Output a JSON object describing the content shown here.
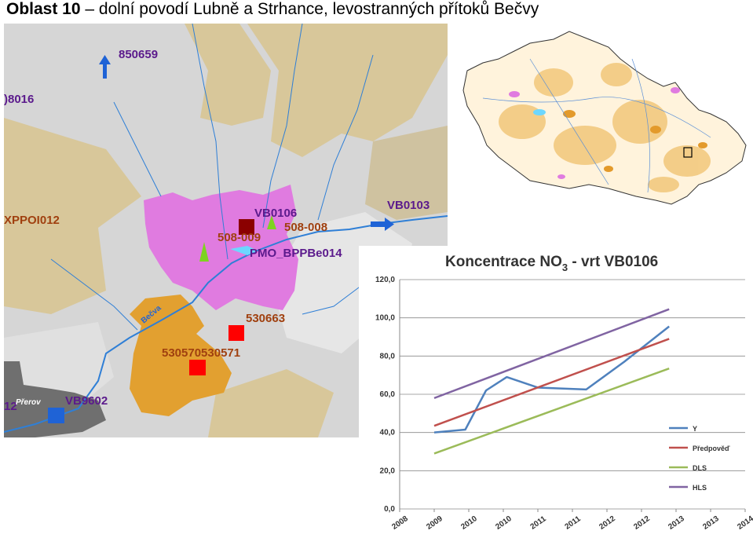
{
  "header": {
    "title_bold": "Oblast 10",
    "title_rest": " – dolní povodí Lubně a Strhance, levostranných přítoků Bečvy"
  },
  "map": {
    "labels": {
      "l850659": "850659",
      "l08016": ")8016",
      "lxppoi": "XPPOI012",
      "lvb0106": "VB0106",
      "l508008": "508-008",
      "l508009": "508-009",
      "lpmo": "PMO_BPPBe014",
      "lvb0103": "VB0103",
      "lbecva": "Bečva",
      "l530663": "530663",
      "l530570": "530570530571",
      "lvb9602": "VB9602",
      "l12": "12",
      "lperov": "Přerov"
    },
    "colors": {
      "terrain_tan": "#d8c79a",
      "terrain_grey": "#d6d6d6",
      "magenta_zone": "#e07be0",
      "orange_zone": "#e2a030",
      "river": "#2f7fd6",
      "label_purple": "#5b1a8c",
      "label_brown": "#a0400f"
    }
  },
  "chart_data": {
    "type": "line",
    "title": "Koncentrace NO3 - vrt VB0106",
    "title_main": "Koncentrace NO",
    "title_sub": "3",
    "title_end": " - vrt VB0106",
    "x_ticks": [
      "2008",
      "2009",
      "2010",
      "2010",
      "2011",
      "2011",
      "2012",
      "2012",
      "2013",
      "2013",
      "2014"
    ],
    "y_ticks": [
      "0,0",
      "20,0",
      "40,0",
      "60,0",
      "80,0",
      "100,0",
      "120,0"
    ],
    "ylim": [
      0,
      120
    ],
    "series": [
      {
        "name": "Y",
        "color": "#4f81bd",
        "x": [
          1,
          1.9,
          2.5,
          3.1,
          4,
          5.4,
          6.5,
          7.8
        ],
        "y": [
          40,
          41.5,
          62,
          69,
          63.5,
          62.5,
          77,
          95.5
        ]
      },
      {
        "name": "Předpověď",
        "color": "#c0504d",
        "x": [
          1,
          7.8
        ],
        "y": [
          43.5,
          89
        ]
      },
      {
        "name": "DLS",
        "color": "#9bbb59",
        "x": [
          1,
          7.8
        ],
        "y": [
          29,
          73.5
        ]
      },
      {
        "name": "HLS",
        "color": "#8064a2",
        "x": [
          1,
          7.8
        ],
        "y": [
          58,
          104.5
        ]
      }
    ],
    "legend_position": "bottom-right"
  }
}
